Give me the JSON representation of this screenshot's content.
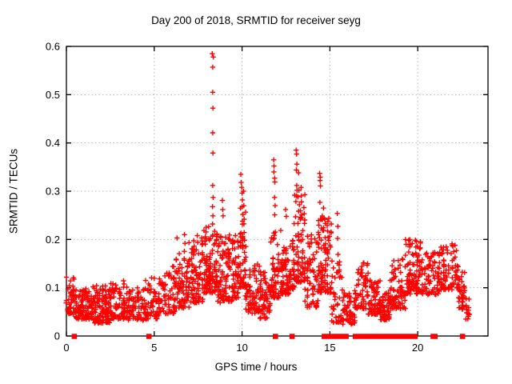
{
  "figure": {
    "background": "#ffffff"
  },
  "chart_data": {
    "type": "scatter",
    "title": "Day 200 of 2018, SRMTID for receiver seyg",
    "xlabel": "GPS time / hours",
    "ylabel": "SRMTID / TECUs",
    "xlim": [
      0,
      24
    ],
    "ylim": [
      0,
      0.6
    ],
    "xticks": [
      "0",
      "5",
      "10",
      "15",
      "20"
    ],
    "yticks": [
      "0",
      "0.1",
      "0.2",
      "0.3",
      "0.4",
      "0.5",
      "0.6"
    ],
    "grid": "dotted, at every major tick, both axes",
    "legend": "none",
    "colors": {
      "marker": "#ff0000",
      "grid": "#b5b5b5",
      "border": "#000000"
    },
    "series": [
      {
        "name": "srmtid",
        "marker": "plus",
        "description": "SRMTID vs GPS time; dense band ~0.03-0.12 TECU from 0-5h rising through 6-8h, large spike to 0.585 near 8.3h, peaks ~0.33 at 10h, 0.365 at 11.8h, 0.385 at 13.1h, 0.337 at 14.4h, quiet dip 15.3-16.4h, moderate 0.05-0.20 from 16.4-22.3h, tail drop to ~0.05 by 22.9h",
        "envelope_bins": [
          [
            0.0,
            0.5,
            0.04,
            0.125,
            45
          ],
          [
            0.5,
            1.5,
            0.03,
            0.1,
            95
          ],
          [
            1.5,
            2.5,
            0.022,
            0.105,
            100
          ],
          [
            2.5,
            3.5,
            0.03,
            0.115,
            95
          ],
          [
            3.5,
            4.5,
            0.028,
            0.1,
            85
          ],
          [
            4.5,
            5.3,
            0.03,
            0.125,
            55
          ],
          [
            5.3,
            6.2,
            0.04,
            0.145,
            70
          ],
          [
            6.2,
            7.0,
            0.05,
            0.18,
            75
          ],
          [
            7.0,
            7.8,
            0.06,
            0.2,
            85
          ],
          [
            7.8,
            8.6,
            0.08,
            0.235,
            110
          ],
          [
            8.6,
            9.4,
            0.06,
            0.21,
            90
          ],
          [
            9.4,
            9.8,
            0.07,
            0.21,
            55
          ],
          [
            9.8,
            10.2,
            0.09,
            0.27,
            60
          ],
          [
            10.2,
            11.0,
            0.04,
            0.16,
            70
          ],
          [
            11.0,
            11.6,
            0.03,
            0.135,
            55
          ],
          [
            11.6,
            12.2,
            0.07,
            0.22,
            65
          ],
          [
            12.2,
            12.7,
            0.08,
            0.185,
            55
          ],
          [
            12.7,
            13.0,
            0.09,
            0.2,
            40
          ],
          [
            13.0,
            13.6,
            0.1,
            0.3,
            85
          ],
          [
            13.6,
            14.3,
            0.05,
            0.21,
            75
          ],
          [
            14.3,
            15.1,
            0.08,
            0.25,
            85
          ],
          [
            15.1,
            15.7,
            0.02,
            0.16,
            50
          ],
          [
            15.7,
            16.4,
            0.02,
            0.09,
            50
          ],
          [
            16.4,
            17.2,
            0.05,
            0.16,
            70
          ],
          [
            17.2,
            17.9,
            0.04,
            0.12,
            65
          ],
          [
            17.9,
            18.4,
            0.03,
            0.09,
            50
          ],
          [
            18.4,
            19.3,
            0.05,
            0.16,
            80
          ],
          [
            19.3,
            20.3,
            0.08,
            0.2,
            95
          ],
          [
            20.3,
            21.3,
            0.08,
            0.175,
            85
          ],
          [
            21.3,
            22.3,
            0.09,
            0.19,
            85
          ],
          [
            22.3,
            22.7,
            0.05,
            0.14,
            40
          ],
          [
            22.7,
            22.95,
            0.03,
            0.08,
            18
          ]
        ],
        "peak_points": [
          [
            8.3,
            0.585
          ],
          [
            8.36,
            0.578
          ],
          [
            8.33,
            0.557
          ],
          [
            8.33,
            0.505
          ],
          [
            8.34,
            0.472
          ],
          [
            8.33,
            0.421
          ],
          [
            8.34,
            0.379
          ],
          [
            8.33,
            0.312
          ],
          [
            8.35,
            0.287
          ],
          [
            8.32,
            0.268
          ],
          [
            8.34,
            0.249
          ],
          [
            8.32,
            0.232
          ],
          [
            8.88,
            0.281
          ],
          [
            8.9,
            0.262
          ],
          [
            8.92,
            0.249
          ],
          [
            9.62,
            0.208
          ],
          [
            6.72,
            0.21
          ],
          [
            6.75,
            0.192
          ],
          [
            6.3,
            0.203
          ],
          [
            7.45,
            0.208
          ],
          [
            7.48,
            0.194
          ],
          [
            7.7,
            0.203
          ],
          [
            9.93,
            0.335
          ],
          [
            9.95,
            0.318
          ],
          [
            9.98,
            0.308
          ],
          [
            10.0,
            0.296
          ],
          [
            10.02,
            0.282
          ],
          [
            10.0,
            0.268
          ],
          [
            10.04,
            0.252
          ],
          [
            10.02,
            0.238
          ],
          [
            10.08,
            0.3
          ],
          [
            10.1,
            0.27
          ],
          [
            10.12,
            0.242
          ],
          [
            11.8,
            0.365
          ],
          [
            11.82,
            0.352
          ],
          [
            11.81,
            0.34
          ],
          [
            11.86,
            0.327
          ],
          [
            11.87,
            0.319
          ],
          [
            11.85,
            0.287
          ],
          [
            11.88,
            0.27
          ],
          [
            11.86,
            0.251
          ],
          [
            12.48,
            0.262
          ],
          [
            12.52,
            0.248
          ],
          [
            13.08,
            0.385
          ],
          [
            13.1,
            0.377
          ],
          [
            13.12,
            0.356
          ],
          [
            13.09,
            0.344
          ],
          [
            13.11,
            0.312
          ],
          [
            13.13,
            0.302
          ],
          [
            13.1,
            0.29
          ],
          [
            13.22,
            0.338
          ],
          [
            13.24,
            0.302
          ],
          [
            13.26,
            0.272
          ],
          [
            13.36,
            0.308
          ],
          [
            13.38,
            0.278
          ],
          [
            13.4,
            0.251
          ],
          [
            14.42,
            0.337
          ],
          [
            14.45,
            0.329
          ],
          [
            14.44,
            0.322
          ],
          [
            14.46,
            0.311
          ],
          [
            14.43,
            0.277
          ],
          [
            14.47,
            0.242
          ],
          [
            14.63,
            0.265
          ],
          [
            14.66,
            0.244
          ],
          [
            14.64,
            0.219
          ],
          [
            14.67,
            0.181
          ],
          [
            15.42,
            0.254
          ],
          [
            15.45,
            0.227
          ],
          [
            15.44,
            0.202
          ],
          [
            15.46,
            0.169
          ],
          [
            19.92,
            0.196
          ],
          [
            19.98,
            0.186
          ],
          [
            21.95,
            0.191
          ],
          [
            22.0,
            0.186
          ],
          [
            22.05,
            0.175
          ]
        ]
      },
      {
        "name": "flagged-zero",
        "marker": "filled-square",
        "y": 0,
        "x": [
          0.45,
          4.7,
          11.9,
          12.85,
          14.68,
          14.76,
          15.0,
          15.1,
          15.22,
          15.34,
          15.46,
          15.6,
          15.8,
          15.92,
          16.45,
          16.57,
          16.72,
          16.9,
          17.02,
          17.15,
          17.35,
          17.47,
          17.62,
          17.74,
          18.0,
          18.12,
          18.3,
          18.42,
          18.62,
          18.75,
          19.0,
          19.12,
          19.27,
          19.5,
          19.62,
          19.85,
          20.88,
          20.98,
          22.55
        ]
      }
    ]
  }
}
